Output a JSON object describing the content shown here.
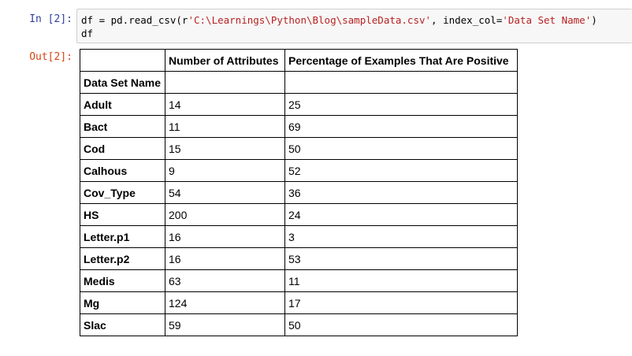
{
  "input_prompt": "In [2]:",
  "output_prompt": "Out[2]:",
  "code": {
    "line1_a": "df = pd.read_csv(r",
    "line1_str1": "'C:\\Learnings\\Python\\Blog\\sampleData.csv'",
    "line1_b": ", index_col=",
    "line1_str2": "'Data Set Name'",
    "line1_c": ")",
    "line2": "df"
  },
  "table": {
    "columns": [
      "",
      "Number of Attributes",
      "Percentage of Examples That Are Positive"
    ],
    "index_name": "Data Set Name",
    "rows": [
      [
        "Adult",
        "14",
        "25"
      ],
      [
        "Bact",
        "11",
        "69"
      ],
      [
        "Cod",
        "15",
        "50"
      ],
      [
        "Calhous",
        "9",
        "52"
      ],
      [
        "Cov_Type",
        "54",
        "36"
      ],
      [
        "HS",
        "200",
        "24"
      ],
      [
        "Letter.p1",
        "16",
        "3"
      ],
      [
        "Letter.p2",
        "16",
        "53"
      ],
      [
        "Medis",
        "63",
        "11"
      ],
      [
        "Mg",
        "124",
        "17"
      ],
      [
        "Slac",
        "59",
        "50"
      ]
    ]
  }
}
